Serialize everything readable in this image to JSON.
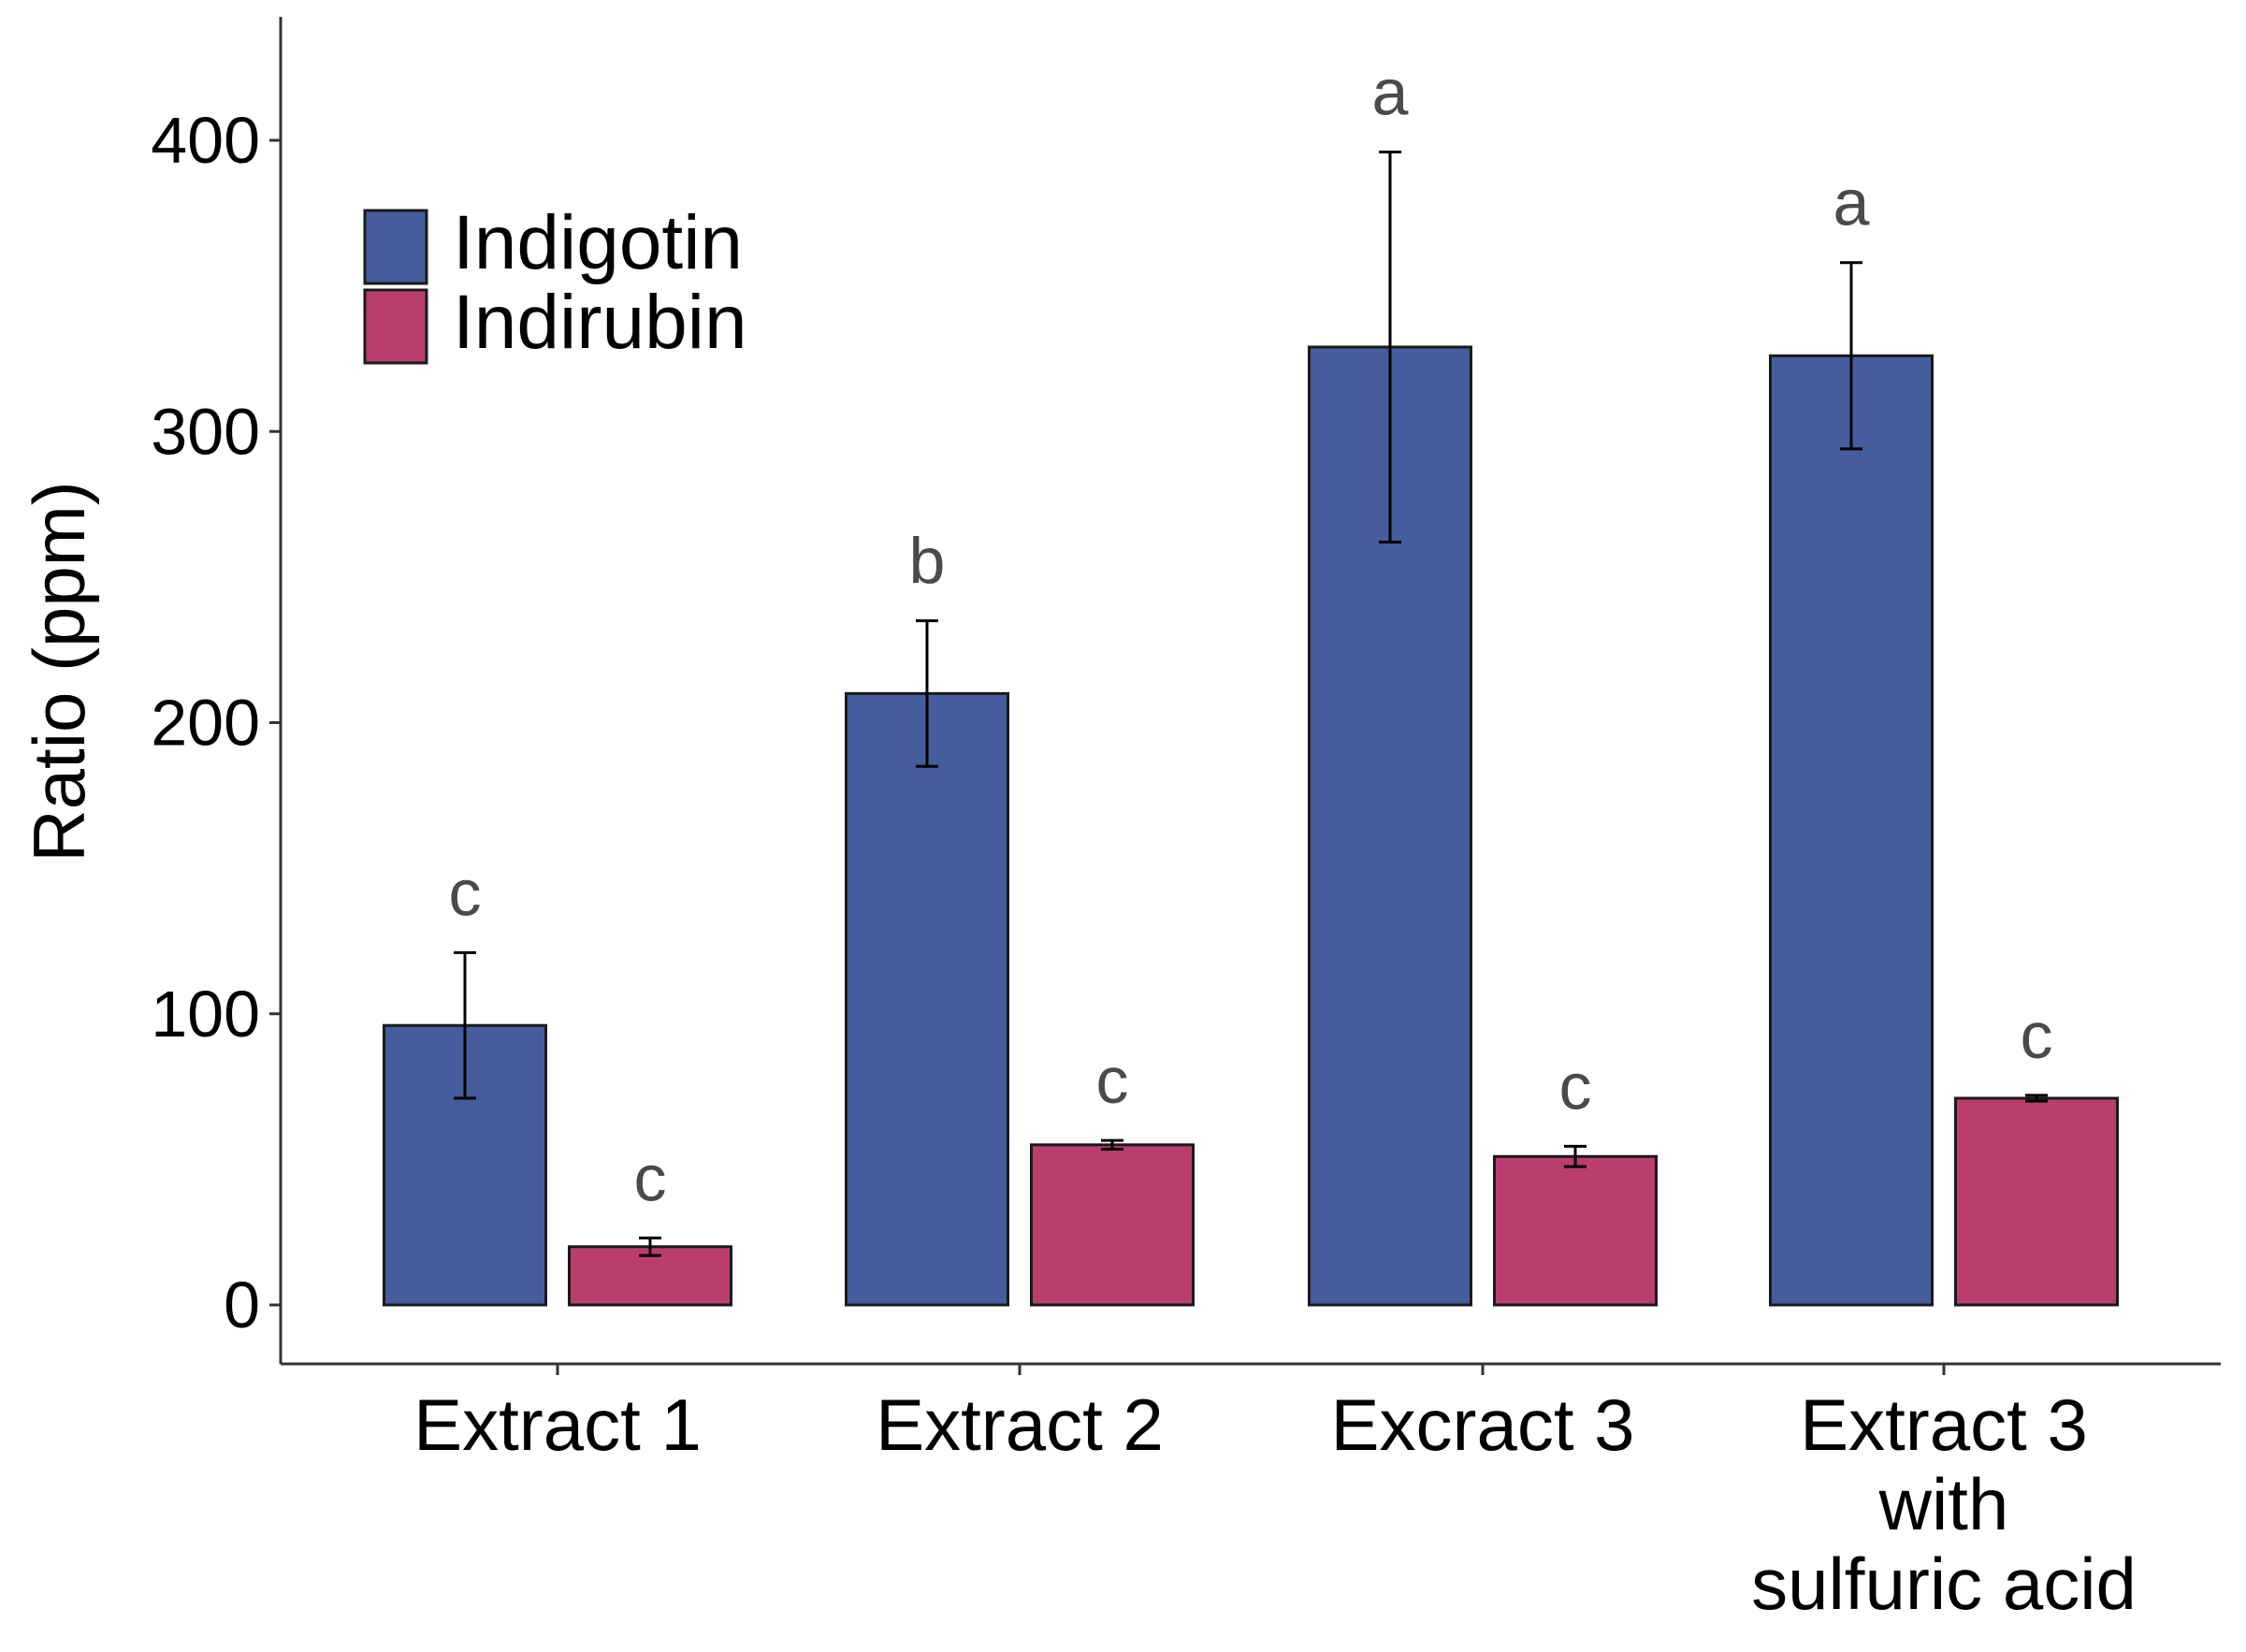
{
  "chart_data": {
    "type": "bar",
    "title": "",
    "xlabel": "",
    "ylabel": "Ratio (ppm)",
    "ylim": [
      -20,
      440
    ],
    "yticks": [
      0,
      100,
      200,
      300,
      400
    ],
    "grid": false,
    "legend_position": "top-left",
    "categories": [
      {
        "lines": [
          "Extract 1"
        ]
      },
      {
        "lines": [
          "Extract 2"
        ]
      },
      {
        "lines": [
          "Excract 3"
        ]
      },
      {
        "lines": [
          "Extract 3",
          "with",
          "sulfuric acid"
        ]
      }
    ],
    "series": [
      {
        "name": "Indigotin",
        "color": "#455d9c",
        "values": [
          96,
          210,
          329,
          326
        ],
        "errors": [
          25,
          25,
          67,
          32
        ],
        "letters": [
          "c",
          "b",
          "a",
          "a"
        ]
      },
      {
        "name": "Indirubin",
        "color": "#b93e6e",
        "values": [
          20,
          55,
          51,
          71
        ],
        "errors": [
          3,
          1.5,
          3.5,
          1
        ],
        "letters": [
          "c",
          "c",
          "c",
          "c"
        ]
      }
    ]
  }
}
